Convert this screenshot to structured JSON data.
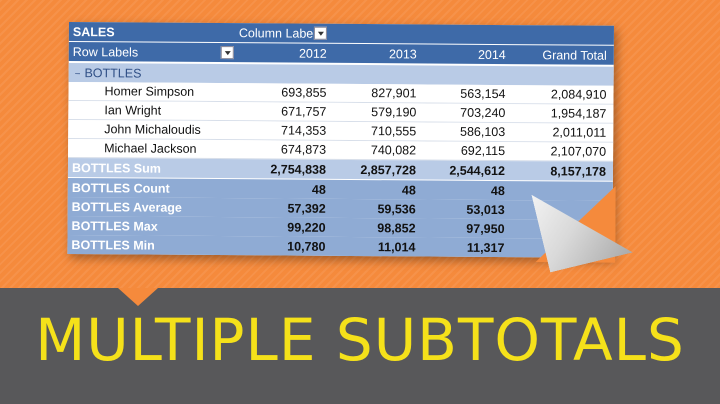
{
  "pivot": {
    "header_row_1": {
      "title": "SALES",
      "column_labels": "Column Labe"
    },
    "header_row_2": {
      "row_labels": "Row Labels",
      "years": [
        "2012",
        "2013",
        "2014"
      ],
      "grand_total": "Grand Total"
    },
    "group": {
      "toggle": "−",
      "label": "BOTTLES"
    },
    "rows": [
      {
        "label": "Homer Simpson",
        "values": [
          "693,855",
          "827,901",
          "563,154",
          "2,084,910"
        ]
      },
      {
        "label": "Ian Wright",
        "values": [
          "671,757",
          "579,190",
          "703,240",
          "1,954,187"
        ]
      },
      {
        "label": "John Michaloudis",
        "values": [
          "714,353",
          "710,555",
          "586,103",
          "2,011,011"
        ]
      },
      {
        "label": "Michael Jackson",
        "values": [
          "674,873",
          "740,082",
          "692,115",
          "2,107,070"
        ]
      }
    ],
    "sum": {
      "label": "BOTTLES Sum",
      "values": [
        "2,754,838",
        "2,857,728",
        "2,544,612",
        "8,157,178"
      ]
    },
    "stats": [
      {
        "label": "BOTTLES Count",
        "values": [
          "48",
          "48",
          "48"
        ]
      },
      {
        "label": "BOTTLES Average",
        "values": [
          "57,392",
          "59,536",
          "53,013"
        ]
      },
      {
        "label": "BOTTLES Max",
        "values": [
          "99,220",
          "98,852",
          "97,950"
        ]
      },
      {
        "label": "BOTTLES Min",
        "values": [
          "10,780",
          "11,014",
          "11,317"
        ]
      }
    ]
  },
  "banner": {
    "title": "MULTIPLE SUBTOTALS"
  },
  "colors": {
    "background": "#f58a3c",
    "header": "#3e6aa8",
    "subtotal_row": "#8fabd4",
    "banner": "#58585a",
    "banner_text": "#f5e11a"
  }
}
